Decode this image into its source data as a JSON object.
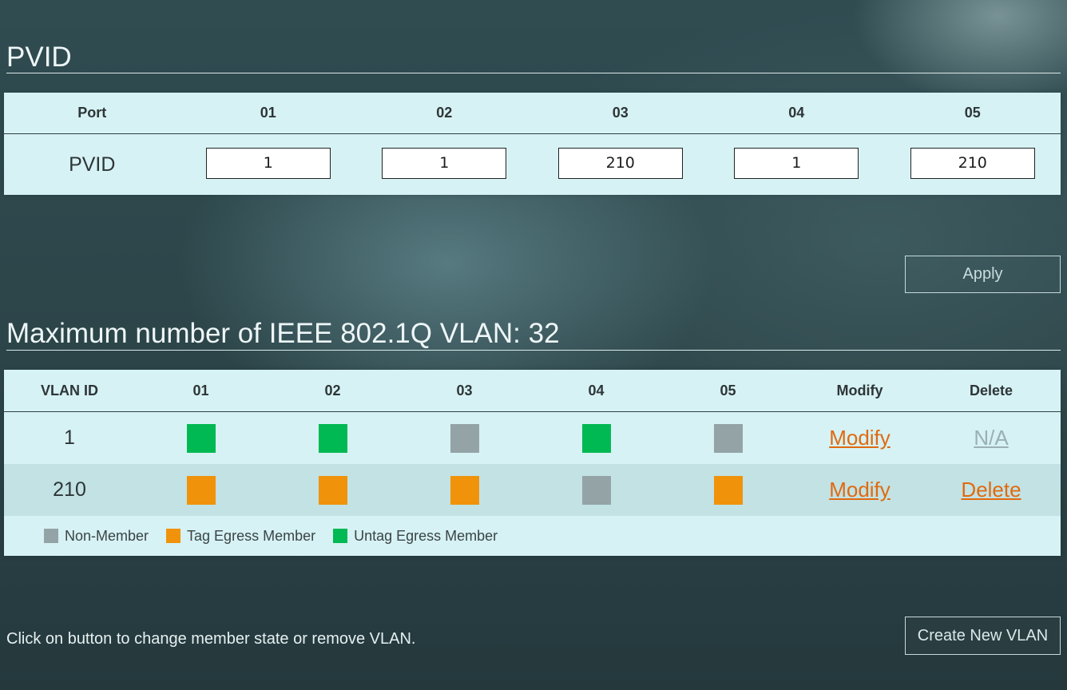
{
  "pvid_section": {
    "title": "PVID",
    "header_label": "Port",
    "ports": [
      "01",
      "02",
      "03",
      "04",
      "05"
    ],
    "row_label": "PVID",
    "values": [
      "1",
      "1",
      "210",
      "1",
      "210"
    ],
    "apply_label": "Apply"
  },
  "vlan_section": {
    "title": "Maximum number of IEEE 802.1Q VLAN: 32",
    "headers": {
      "vlan_id": "VLAN ID",
      "ports": [
        "01",
        "02",
        "03",
        "04",
        "05"
      ],
      "modify": "Modify",
      "delete": "Delete"
    },
    "rows": [
      {
        "vlan_id": "1",
        "members": [
          "untag",
          "untag",
          "non",
          "untag",
          "non"
        ],
        "modify_label": "Modify",
        "delete_label": "N/A",
        "delete_enabled": false
      },
      {
        "vlan_id": "210",
        "members": [
          "tag",
          "tag",
          "tag",
          "non",
          "tag"
        ],
        "modify_label": "Modify",
        "delete_label": "Delete",
        "delete_enabled": true
      }
    ],
    "legend": {
      "non_member": "Non-Member",
      "tag_egress": "Tag Egress Member",
      "untag_egress": "Untag Egress Member"
    },
    "colors": {
      "untag": "#00b952",
      "tag": "#f0930a",
      "non": "#94a4a6",
      "link": "#e06a10"
    }
  },
  "footer": {
    "hint": "Click on button to change member state or remove VLAN.",
    "create_label": "Create New VLAN"
  }
}
